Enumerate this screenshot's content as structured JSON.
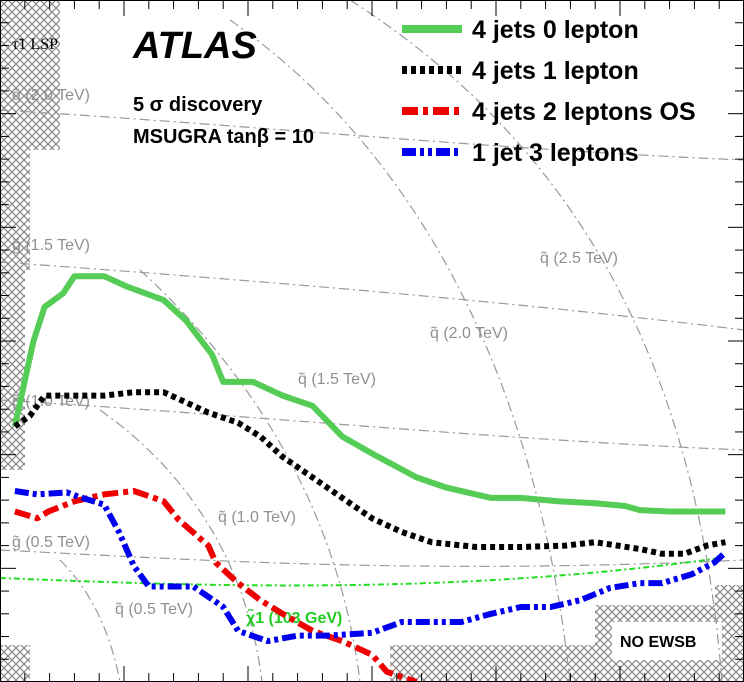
{
  "chart_data": {
    "type": "line",
    "title": "",
    "xlabel": "",
    "ylabel": "",
    "experiment": "ATLAS",
    "annotations": [
      "5 σ discovery",
      "MSUGRA tanβ = 10"
    ],
    "excluded_regions": {
      "lsp_label": "τ̃1 LSP",
      "no_ewsb_label": "NO EWSB",
      "chargino_label": "χ̃1 (103 GeV)"
    },
    "gluino_contour_labels": [
      "g̃ (0.5 TeV)",
      "g̃ (1.0 TeV)",
      "g̃ (1.5 TeV)",
      "g̃ (2.0 TeV)"
    ],
    "squark_contour_labels": [
      "q̃ (0.5 TeV)",
      "q̃ (1.0 TeV)",
      "q̃ (1.5 TeV)",
      "q̃ (2.0 TeV)",
      "q̃ (2.5 TeV)"
    ],
    "legend_position": "top-right",
    "series": [
      {
        "name": "4 jets 0 lepton",
        "color": "#55cc55",
        "style": "solid",
        "x": [
          0.02,
          0.035,
          0.045,
          0.06,
          0.085,
          0.1,
          0.14,
          0.17,
          0.22,
          0.25,
          0.285,
          0.3,
          0.34,
          0.38,
          0.42,
          0.46,
          0.5,
          0.56,
          0.6,
          0.66,
          0.7,
          0.75,
          0.8,
          0.84,
          0.86,
          0.9,
          0.95,
          0.975
        ],
        "y": [
          0.375,
          0.45,
          0.5,
          0.55,
          0.57,
          0.595,
          0.595,
          0.58,
          0.56,
          0.53,
          0.48,
          0.44,
          0.44,
          0.42,
          0.405,
          0.36,
          0.335,
          0.3,
          0.285,
          0.27,
          0.27,
          0.265,
          0.262,
          0.258,
          0.252,
          0.25,
          0.25,
          0.25
        ]
      },
      {
        "name": "4 jets 1 lepton",
        "color": "#000000",
        "style": "dotted",
        "x": [
          0.02,
          0.04,
          0.06,
          0.14,
          0.18,
          0.22,
          0.25,
          0.28,
          0.32,
          0.35,
          0.38,
          0.42,
          0.46,
          0.5,
          0.54,
          0.58,
          0.64,
          0.7,
          0.76,
          0.8,
          0.83,
          0.86,
          0.89,
          0.92,
          0.95,
          0.975
        ],
        "y": [
          0.375,
          0.39,
          0.42,
          0.42,
          0.425,
          0.425,
          0.41,
          0.395,
          0.38,
          0.36,
          0.33,
          0.3,
          0.27,
          0.24,
          0.22,
          0.205,
          0.198,
          0.198,
          0.2,
          0.205,
          0.2,
          0.195,
          0.188,
          0.188,
          0.2,
          0.205
        ]
      },
      {
        "name": "4 jets 2 leptons OS",
        "color": "#ee0000",
        "style": "dashdot",
        "x": [
          0.02,
          0.05,
          0.065,
          0.1,
          0.14,
          0.18,
          0.22,
          0.24,
          0.28,
          0.29,
          0.3,
          0.32,
          0.35,
          0.38,
          0.42,
          0.46,
          0.5,
          0.52,
          0.56
        ],
        "y": [
          0.25,
          0.24,
          0.25,
          0.265,
          0.275,
          0.28,
          0.265,
          0.238,
          0.2,
          0.175,
          0.165,
          0.145,
          0.12,
          0.1,
          0.075,
          0.06,
          0.04,
          0.015,
          0.0
        ]
      },
      {
        "name": "1 jet 3 leptons",
        "color": "#0000ee",
        "style": "dashdotdot",
        "x": [
          0.02,
          0.05,
          0.09,
          0.105,
          0.14,
          0.16,
          0.18,
          0.2,
          0.22,
          0.26,
          0.3,
          0.32,
          0.36,
          0.4,
          0.44,
          0.5,
          0.54,
          0.58,
          0.62,
          0.66,
          0.7,
          0.74,
          0.78,
          0.82,
          0.86,
          0.89,
          0.93,
          0.96,
          0.975
        ],
        "y": [
          0.28,
          0.275,
          0.278,
          0.272,
          0.26,
          0.22,
          0.17,
          0.14,
          0.14,
          0.14,
          0.11,
          0.075,
          0.06,
          0.068,
          0.068,
          0.072,
          0.088,
          0.088,
          0.088,
          0.1,
          0.11,
          0.11,
          0.12,
          0.138,
          0.145,
          0.145,
          0.158,
          0.175,
          0.19
        ]
      }
    ]
  }
}
